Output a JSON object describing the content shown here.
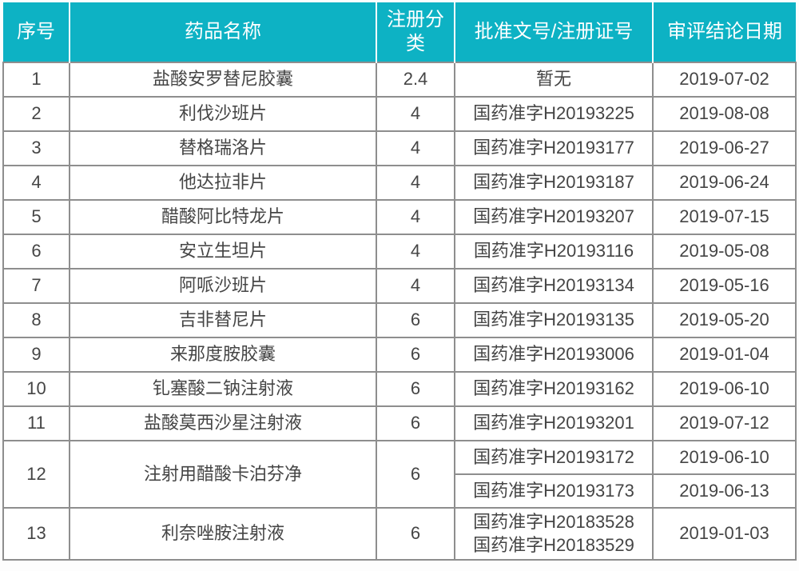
{
  "colors": {
    "header_bg": "#0db2c4",
    "header_text": "#ffffff",
    "border": "#8e8e8e",
    "body_text": "#454545"
  },
  "table": {
    "headers": [
      "序号",
      "药品名称",
      "注册分类",
      "批准文号/注册证号",
      "审评结论日期"
    ],
    "rows": [
      {
        "no": "1",
        "name": "盐酸安罗替尼胶囊",
        "category": "2.4",
        "entries": [
          {
            "approval": "暂无",
            "date": "2019-07-02"
          }
        ]
      },
      {
        "no": "2",
        "name": "利伐沙班片",
        "category": "4",
        "entries": [
          {
            "approval": "国药准字H20193225",
            "date": "2019-08-08"
          }
        ]
      },
      {
        "no": "3",
        "name": "替格瑞洛片",
        "category": "4",
        "entries": [
          {
            "approval": "国药准字H20193177",
            "date": "2019-06-27"
          }
        ]
      },
      {
        "no": "4",
        "name": "他达拉非片",
        "category": "4",
        "entries": [
          {
            "approval": "国药准字H20193187",
            "date": "2019-06-24"
          }
        ]
      },
      {
        "no": "5",
        "name": "醋酸阿比特龙片",
        "category": "4",
        "entries": [
          {
            "approval": "国药准字H20193207",
            "date": "2019-07-15"
          }
        ]
      },
      {
        "no": "6",
        "name": "安立生坦片",
        "category": "4",
        "entries": [
          {
            "approval": "国药准字H20193116",
            "date": "2019-05-08"
          }
        ]
      },
      {
        "no": "7",
        "name": "阿哌沙班片",
        "category": "4",
        "entries": [
          {
            "approval": "国药准字H20193134",
            "date": "2019-05-16"
          }
        ]
      },
      {
        "no": "8",
        "name": "吉非替尼片",
        "category": "6",
        "entries": [
          {
            "approval": "国药准字H20193135",
            "date": "2019-05-20"
          }
        ]
      },
      {
        "no": "9",
        "name": "来那度胺胶囊",
        "category": "6",
        "entries": [
          {
            "approval": "国药准字H20193006",
            "date": "2019-01-04"
          }
        ]
      },
      {
        "no": "10",
        "name": "钆塞酸二钠注射液",
        "category": "6",
        "entries": [
          {
            "approval": "国药准字H20193162",
            "date": "2019-06-10"
          }
        ]
      },
      {
        "no": "11",
        "name": "盐酸莫西沙星注射液",
        "category": "6",
        "entries": [
          {
            "approval": "国药准字H20193201",
            "date": "2019-07-12"
          }
        ]
      },
      {
        "no": "12",
        "name": "注射用醋酸卡泊芬净",
        "category": "6",
        "entries": [
          {
            "approval": "国药准字H20193172",
            "date": "2019-06-10"
          },
          {
            "approval": "国药准字H20193173",
            "date": "2019-06-13"
          }
        ]
      },
      {
        "no": "13",
        "name": "利奈唑胺注射液",
        "category": "6",
        "entries": [
          {
            "approval": "国药准字H20183528\n国药准字H20183529",
            "date": "2019-01-03"
          }
        ]
      }
    ]
  }
}
